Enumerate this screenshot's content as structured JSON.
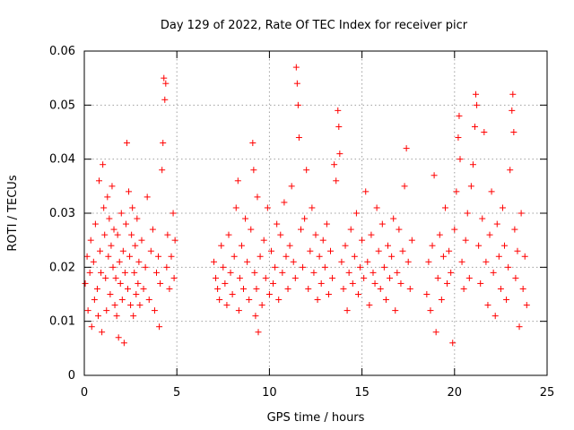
{
  "chart_data": {
    "type": "scatter",
    "title": "Day 129 of 2022, Rate Of TEC Index for receiver picr",
    "xlabel": "GPS time / hours",
    "ylabel": "ROTI / TECUs",
    "xlim": [
      0,
      25
    ],
    "ylim": [
      0,
      0.06
    ],
    "x_ticks": [
      0,
      5,
      10,
      15,
      20,
      25
    ],
    "x_tick_labels": [
      "0",
      "5",
      "10",
      "15",
      "20",
      "25"
    ],
    "y_ticks": [
      0,
      0.01,
      0.02,
      0.03,
      0.04,
      0.05,
      0.06
    ],
    "y_tick_labels": [
      "0",
      "0.01",
      "0.02",
      "0.03",
      "0.04",
      "0.05",
      "0.06"
    ],
    "grid": true,
    "marker": "+",
    "series": [
      {
        "name": "ROTI",
        "color": "#ff0000",
        "points": [
          [
            0.05,
            0.017
          ],
          [
            0.15,
            0.022
          ],
          [
            0.2,
            0.012
          ],
          [
            0.3,
            0.019
          ],
          [
            0.35,
            0.025
          ],
          [
            0.4,
            0.009
          ],
          [
            0.5,
            0.021
          ],
          [
            0.55,
            0.014
          ],
          [
            0.6,
            0.028
          ],
          [
            0.7,
            0.016
          ],
          [
            0.75,
            0.011
          ],
          [
            0.8,
            0.036
          ],
          [
            0.85,
            0.023
          ],
          [
            0.9,
            0.019
          ],
          [
            0.95,
            0.008
          ],
          [
            1.0,
            0.039
          ],
          [
            1.05,
            0.031
          ],
          [
            1.1,
            0.026
          ],
          [
            1.15,
            0.018
          ],
          [
            1.2,
            0.012
          ],
          [
            1.25,
            0.033
          ],
          [
            1.3,
            0.022
          ],
          [
            1.35,
            0.029
          ],
          [
            1.4,
            0.015
          ],
          [
            1.45,
            0.024
          ],
          [
            1.5,
            0.035
          ],
          [
            1.55,
            0.02
          ],
          [
            1.6,
            0.027
          ],
          [
            1.65,
            0.013
          ],
          [
            1.7,
            0.018
          ],
          [
            1.75,
            0.011
          ],
          [
            1.8,
            0.026
          ],
          [
            1.85,
            0.007
          ],
          [
            1.9,
            0.021
          ],
          [
            1.95,
            0.017
          ],
          [
            2.0,
            0.03
          ],
          [
            2.05,
            0.014
          ],
          [
            2.1,
            0.023
          ],
          [
            2.15,
            0.006
          ],
          [
            2.2,
            0.019
          ],
          [
            2.25,
            0.028
          ],
          [
            2.3,
            0.043
          ],
          [
            2.35,
            0.016
          ],
          [
            2.4,
            0.034
          ],
          [
            2.45,
            0.022
          ],
          [
            2.5,
            0.013
          ],
          [
            2.55,
            0.026
          ],
          [
            2.6,
            0.031
          ],
          [
            2.65,
            0.011
          ],
          [
            2.7,
            0.019
          ],
          [
            2.75,
            0.024
          ],
          [
            2.8,
            0.015
          ],
          [
            2.85,
            0.029
          ],
          [
            2.9,
            0.017
          ],
          [
            2.95,
            0.021
          ],
          [
            3.0,
            0.013
          ],
          [
            3.1,
            0.025
          ],
          [
            3.2,
            0.016
          ],
          [
            3.3,
            0.02
          ],
          [
            3.4,
            0.033
          ],
          [
            3.5,
            0.014
          ],
          [
            3.6,
            0.023
          ],
          [
            3.7,
            0.027
          ],
          [
            3.8,
            0.012
          ],
          [
            3.9,
            0.019
          ],
          [
            4.0,
            0.022
          ],
          [
            4.05,
            0.009
          ],
          [
            4.1,
            0.017
          ],
          [
            4.2,
            0.038
          ],
          [
            4.25,
            0.043
          ],
          [
            4.3,
            0.055
          ],
          [
            4.35,
            0.051
          ],
          [
            4.4,
            0.054
          ],
          [
            4.45,
            0.02
          ],
          [
            4.5,
            0.026
          ],
          [
            4.6,
            0.016
          ],
          [
            4.7,
            0.022
          ],
          [
            4.8,
            0.03
          ],
          [
            4.85,
            0.018
          ],
          [
            4.9,
            0.025
          ],
          [
            7.0,
            0.021
          ],
          [
            7.1,
            0.018
          ],
          [
            7.2,
            0.016
          ],
          [
            7.3,
            0.014
          ],
          [
            7.4,
            0.024
          ],
          [
            7.5,
            0.02
          ],
          [
            7.6,
            0.017
          ],
          [
            7.7,
            0.013
          ],
          [
            7.8,
            0.026
          ],
          [
            7.9,
            0.019
          ],
          [
            8.0,
            0.015
          ],
          [
            8.1,
            0.022
          ],
          [
            8.2,
            0.031
          ],
          [
            8.3,
            0.036
          ],
          [
            8.35,
            0.012
          ],
          [
            8.4,
            0.018
          ],
          [
            8.5,
            0.024
          ],
          [
            8.6,
            0.016
          ],
          [
            8.7,
            0.029
          ],
          [
            8.8,
            0.021
          ],
          [
            8.9,
            0.014
          ],
          [
            9.0,
            0.027
          ],
          [
            9.1,
            0.043
          ],
          [
            9.15,
            0.038
          ],
          [
            9.2,
            0.019
          ],
          [
            9.25,
            0.011
          ],
          [
            9.3,
            0.016
          ],
          [
            9.35,
            0.033
          ],
          [
            9.4,
            0.008
          ],
          [
            9.5,
            0.022
          ],
          [
            9.6,
            0.013
          ],
          [
            9.7,
            0.025
          ],
          [
            9.8,
            0.018
          ],
          [
            9.9,
            0.031
          ],
          [
            10.0,
            0.015
          ],
          [
            10.1,
            0.023
          ],
          [
            10.2,
            0.017
          ],
          [
            10.3,
            0.02
          ],
          [
            10.4,
            0.028
          ],
          [
            10.5,
            0.014
          ],
          [
            10.6,
            0.026
          ],
          [
            10.7,
            0.019
          ],
          [
            10.8,
            0.032
          ],
          [
            10.9,
            0.022
          ],
          [
            11.0,
            0.016
          ],
          [
            11.1,
            0.024
          ],
          [
            11.2,
            0.035
          ],
          [
            11.3,
            0.021
          ],
          [
            11.4,
            0.018
          ],
          [
            11.45,
            0.057
          ],
          [
            11.5,
            0.054
          ],
          [
            11.55,
            0.05
          ],
          [
            11.6,
            0.044
          ],
          [
            11.7,
            0.027
          ],
          [
            11.8,
            0.02
          ],
          [
            11.9,
            0.029
          ],
          [
            12.0,
            0.038
          ],
          [
            12.1,
            0.016
          ],
          [
            12.2,
            0.023
          ],
          [
            12.3,
            0.031
          ],
          [
            12.4,
            0.019
          ],
          [
            12.5,
            0.026
          ],
          [
            12.6,
            0.014
          ],
          [
            12.7,
            0.022
          ],
          [
            12.8,
            0.017
          ],
          [
            12.9,
            0.025
          ],
          [
            13.0,
            0.02
          ],
          [
            13.1,
            0.028
          ],
          [
            13.2,
            0.015
          ],
          [
            13.3,
            0.023
          ],
          [
            13.4,
            0.018
          ],
          [
            13.5,
            0.039
          ],
          [
            13.6,
            0.036
          ],
          [
            13.7,
            0.049
          ],
          [
            13.75,
            0.046
          ],
          [
            13.8,
            0.041
          ],
          [
            13.9,
            0.021
          ],
          [
            14.0,
            0.016
          ],
          [
            14.1,
            0.024
          ],
          [
            14.2,
            0.012
          ],
          [
            14.3,
            0.019
          ],
          [
            14.4,
            0.027
          ],
          [
            14.5,
            0.017
          ],
          [
            14.6,
            0.022
          ],
          [
            14.7,
            0.03
          ],
          [
            14.8,
            0.015
          ],
          [
            14.9,
            0.02
          ],
          [
            15.0,
            0.025
          ],
          [
            15.1,
            0.018
          ],
          [
            15.2,
            0.034
          ],
          [
            15.3,
            0.021
          ],
          [
            15.4,
            0.013
          ],
          [
            15.5,
            0.026
          ],
          [
            15.6,
            0.019
          ],
          [
            15.7,
            0.017
          ],
          [
            15.8,
            0.031
          ],
          [
            15.9,
            0.023
          ],
          [
            16.0,
            0.016
          ],
          [
            16.1,
            0.028
          ],
          [
            16.2,
            0.02
          ],
          [
            16.3,
            0.014
          ],
          [
            16.4,
            0.024
          ],
          [
            16.5,
            0.018
          ],
          [
            16.6,
            0.022
          ],
          [
            16.7,
            0.029
          ],
          [
            16.8,
            0.012
          ],
          [
            16.9,
            0.019
          ],
          [
            17.0,
            0.027
          ],
          [
            17.1,
            0.017
          ],
          [
            17.2,
            0.023
          ],
          [
            17.3,
            0.035
          ],
          [
            17.4,
            0.042
          ],
          [
            17.5,
            0.021
          ],
          [
            17.6,
            0.016
          ],
          [
            17.7,
            0.025
          ],
          [
            18.5,
            0.015
          ],
          [
            18.6,
            0.021
          ],
          [
            18.7,
            0.012
          ],
          [
            18.8,
            0.024
          ],
          [
            18.9,
            0.037
          ],
          [
            19.0,
            0.008
          ],
          [
            19.1,
            0.018
          ],
          [
            19.2,
            0.026
          ],
          [
            19.3,
            0.014
          ],
          [
            19.4,
            0.022
          ],
          [
            19.5,
            0.031
          ],
          [
            19.6,
            0.017
          ],
          [
            19.7,
            0.023
          ],
          [
            19.8,
            0.019
          ],
          [
            19.9,
            0.006
          ],
          [
            20.0,
            0.027
          ],
          [
            20.1,
            0.034
          ],
          [
            20.2,
            0.044
          ],
          [
            20.25,
            0.048
          ],
          [
            20.3,
            0.04
          ],
          [
            20.4,
            0.021
          ],
          [
            20.5,
            0.016
          ],
          [
            20.6,
            0.025
          ],
          [
            20.7,
            0.03
          ],
          [
            20.8,
            0.018
          ],
          [
            20.9,
            0.035
          ],
          [
            21.0,
            0.039
          ],
          [
            21.1,
            0.046
          ],
          [
            21.15,
            0.052
          ],
          [
            21.2,
            0.05
          ],
          [
            21.3,
            0.024
          ],
          [
            21.4,
            0.017
          ],
          [
            21.5,
            0.029
          ],
          [
            21.6,
            0.045
          ],
          [
            21.7,
            0.021
          ],
          [
            21.8,
            0.013
          ],
          [
            21.9,
            0.026
          ],
          [
            22.0,
            0.034
          ],
          [
            22.1,
            0.019
          ],
          [
            22.2,
            0.011
          ],
          [
            22.3,
            0.028
          ],
          [
            22.4,
            0.022
          ],
          [
            22.5,
            0.016
          ],
          [
            22.6,
            0.031
          ],
          [
            22.7,
            0.024
          ],
          [
            22.8,
            0.014
          ],
          [
            22.9,
            0.02
          ],
          [
            23.0,
            0.038
          ],
          [
            23.1,
            0.049
          ],
          [
            23.15,
            0.052
          ],
          [
            23.2,
            0.045
          ],
          [
            23.25,
            0.027
          ],
          [
            23.3,
            0.018
          ],
          [
            23.4,
            0.023
          ],
          [
            23.5,
            0.009
          ],
          [
            23.6,
            0.03
          ],
          [
            23.7,
            0.016
          ],
          [
            23.8,
            0.022
          ],
          [
            23.9,
            0.013
          ]
        ]
      }
    ]
  }
}
